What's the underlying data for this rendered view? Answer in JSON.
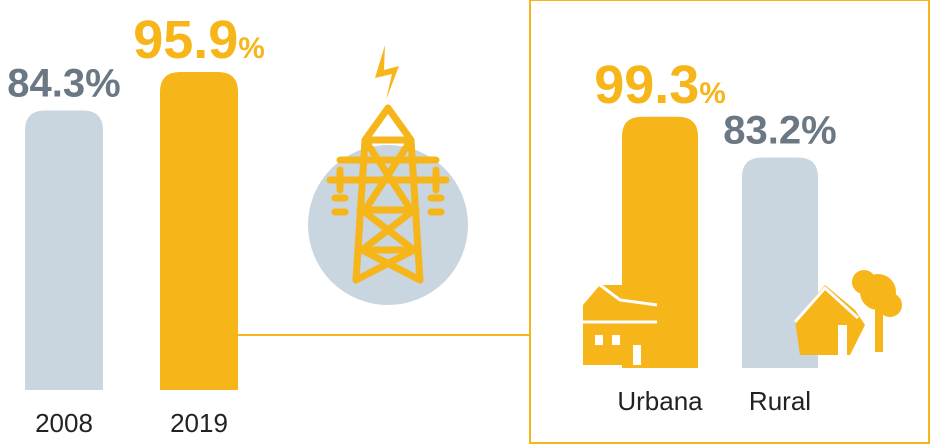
{
  "chart_data": [
    {
      "type": "bar",
      "categories": [
        "2008",
        "2019"
      ],
      "values": [
        84.3,
        95.9
      ],
      "value_labels": [
        "84.3%",
        "95.9%"
      ],
      "colors": [
        "#c9d5df",
        "#f6b519"
      ],
      "label_colors": [
        "#6b7884",
        "#f6b519"
      ]
    },
    {
      "type": "bar",
      "categories": [
        "Urbana",
        "Rural"
      ],
      "values": [
        99.3,
        83.2
      ],
      "value_labels": [
        "99.3%",
        "83.2%"
      ],
      "colors": [
        "#f6b519",
        "#c9d5df"
      ],
      "label_colors": [
        "#f6b519",
        "#6b7884"
      ]
    }
  ]
}
